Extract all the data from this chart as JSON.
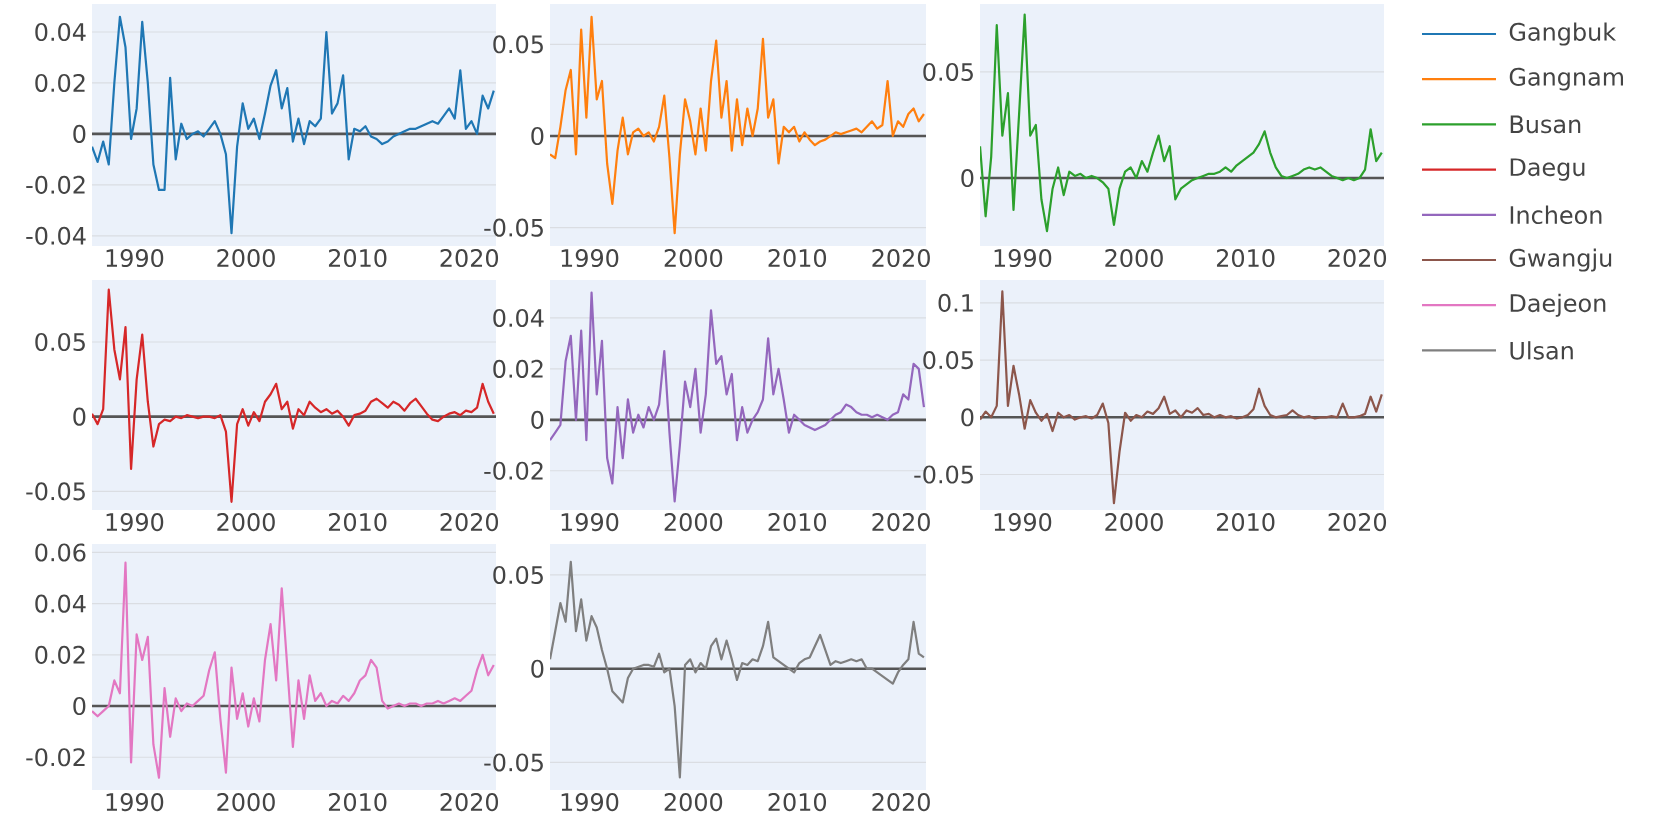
{
  "chart_data": [
    {
      "type": "line",
      "legend": "right",
      "grid": "y",
      "xlim": [
        1986.2,
        2022.4
      ],
      "ylim": [
        -0.044,
        0.051
      ],
      "xticks": [
        1990,
        2000,
        2010,
        2020
      ],
      "yticks": [
        -0.04,
        -0.02,
        0,
        0.02,
        0.04
      ],
      "ref_lines": [
        {
          "axis": "y",
          "value": 0,
          "color": "#555555"
        }
      ],
      "x": [
        1986.2,
        1986.7,
        1987.2,
        1987.7,
        1988.2,
        1988.7,
        1989.2,
        1989.7,
        1990.2,
        1990.7,
        1991.2,
        1991.7,
        1992.2,
        1992.7,
        1993.2,
        1993.7,
        1994.2,
        1994.7,
        1995.2,
        1995.7,
        1996.2,
        1996.7,
        1997.2,
        1997.7,
        1998.2,
        1998.7,
        1999.2,
        1999.7,
        2000.2,
        2000.7,
        2001.2,
        2001.7,
        2002.2,
        2002.7,
        2003.2,
        2003.7,
        2004.2,
        2004.7,
        2005.2,
        2005.7,
        2006.2,
        2006.7,
        2007.2,
        2007.7,
        2008.2,
        2008.7,
        2009.2,
        2009.7,
        2010.2,
        2010.7,
        2011.2,
        2011.7,
        2012.2,
        2012.7,
        2013.2,
        2013.7,
        2014.2,
        2014.7,
        2015.2,
        2015.7,
        2016.2,
        2016.7,
        2017.2,
        2017.7,
        2018.2,
        2018.7,
        2019.2,
        2019.7,
        2020.2,
        2020.7,
        2021.2,
        2021.7,
        2022.2
      ],
      "series": [
        {
          "name": "Gangbuk",
          "color": "#1f77b4",
          "values": [
            -0.005,
            -0.011,
            -0.003,
            -0.012,
            0.02,
            0.046,
            0.034,
            -0.002,
            0.01,
            0.044,
            0.02,
            -0.012,
            -0.022,
            -0.022,
            0.022,
            -0.01,
            0.004,
            -0.002,
            0.0,
            0.001,
            -0.001,
            0.002,
            0.005,
            0.0,
            -0.008,
            -0.039,
            -0.005,
            0.012,
            0.002,
            0.006,
            -0.002,
            0.008,
            0.019,
            0.025,
            0.01,
            0.018,
            -0.003,
            0.006,
            -0.004,
            0.005,
            0.003,
            0.006,
            0.04,
            0.008,
            0.012,
            0.023,
            -0.01,
            0.002,
            0.001,
            0.003,
            -0.001,
            -0.002,
            -0.004,
            -0.003,
            -0.001,
            0.0,
            0.001,
            0.002,
            0.002,
            0.003,
            0.004,
            0.005,
            0.004,
            0.007,
            0.01,
            0.006,
            0.025,
            0.002,
            0.005,
            0.0,
            0.015,
            0.01,
            0.017
          ]
        }
      ]
    },
    {
      "type": "line",
      "legend": "right",
      "grid": "y",
      "xlim": [
        1986.2,
        2022.4
      ],
      "ylim": [
        -0.06,
        0.072
      ],
      "xticks": [
        1990,
        2000,
        2010,
        2020
      ],
      "yticks": [
        -0.05,
        0,
        0.05
      ],
      "ref_lines": [
        {
          "axis": "y",
          "value": 0,
          "color": "#555555"
        }
      ],
      "x": [
        1986.2,
        1986.7,
        1987.2,
        1987.7,
        1988.2,
        1988.7,
        1989.2,
        1989.7,
        1990.2,
        1990.7,
        1991.2,
        1991.7,
        1992.2,
        1992.7,
        1993.2,
        1993.7,
        1994.2,
        1994.7,
        1995.2,
        1995.7,
        1996.2,
        1996.7,
        1997.2,
        1997.7,
        1998.2,
        1998.7,
        1999.2,
        1999.7,
        2000.2,
        2000.7,
        2001.2,
        2001.7,
        2002.2,
        2002.7,
        2003.2,
        2003.7,
        2004.2,
        2004.7,
        2005.2,
        2005.7,
        2006.2,
        2006.7,
        2007.2,
        2007.7,
        2008.2,
        2008.7,
        2009.2,
        2009.7,
        2010.2,
        2010.7,
        2011.2,
        2011.7,
        2012.2,
        2012.7,
        2013.2,
        2013.7,
        2014.2,
        2014.7,
        2015.2,
        2015.7,
        2016.2,
        2016.7,
        2017.2,
        2017.7,
        2018.2,
        2018.7,
        2019.2,
        2019.7,
        2020.2,
        2020.7,
        2021.2,
        2021.7,
        2022.2
      ],
      "series": [
        {
          "name": "Gangnam",
          "color": "#ff7f0e",
          "values": [
            -0.01,
            -0.012,
            0.005,
            0.025,
            0.036,
            -0.01,
            0.058,
            0.01,
            0.065,
            0.02,
            0.03,
            -0.015,
            -0.037,
            -0.008,
            0.01,
            -0.01,
            0.002,
            0.004,
            0.0,
            0.002,
            -0.003,
            0.005,
            0.022,
            -0.012,
            -0.053,
            -0.01,
            0.02,
            0.008,
            -0.01,
            0.015,
            -0.008,
            0.03,
            0.052,
            0.01,
            0.03,
            -0.008,
            0.02,
            -0.005,
            0.015,
            0.0,
            0.015,
            0.053,
            0.01,
            0.02,
            -0.015,
            0.005,
            0.002,
            0.005,
            -0.003,
            0.002,
            -0.002,
            -0.005,
            -0.003,
            -0.002,
            0.0,
            0.002,
            0.001,
            0.002,
            0.003,
            0.004,
            0.002,
            0.005,
            0.008,
            0.004,
            0.006,
            0.03,
            0.0,
            0.008,
            0.005,
            0.012,
            0.015,
            0.008,
            0.012
          ]
        }
      ]
    },
    {
      "type": "line",
      "legend": "right",
      "grid": "y",
      "xlim": [
        1986.2,
        2022.4
      ],
      "ylim": [
        -0.032,
        0.082
      ],
      "xticks": [
        1990,
        2000,
        2010,
        2020
      ],
      "yticks": [
        0,
        0.05
      ],
      "ref_lines": [
        {
          "axis": "y",
          "value": 0,
          "color": "#555555"
        }
      ],
      "x": [
        1986.2,
        1986.7,
        1987.2,
        1987.7,
        1988.2,
        1988.7,
        1989.2,
        1989.7,
        1990.2,
        1990.7,
        1991.2,
        1991.7,
        1992.2,
        1992.7,
        1993.2,
        1993.7,
        1994.2,
        1994.7,
        1995.2,
        1995.7,
        1996.2,
        1996.7,
        1997.2,
        1997.7,
        1998.2,
        1998.7,
        1999.2,
        1999.7,
        2000.2,
        2000.7,
        2001.2,
        2001.7,
        2002.2,
        2002.7,
        2003.2,
        2003.7,
        2004.2,
        2004.7,
        2005.2,
        2005.7,
        2006.2,
        2006.7,
        2007.2,
        2007.7,
        2008.2,
        2008.7,
        2009.2,
        2009.7,
        2010.2,
        2010.7,
        2011.2,
        2011.7,
        2012.2,
        2012.7,
        2013.2,
        2013.7,
        2014.2,
        2014.7,
        2015.2,
        2015.7,
        2016.2,
        2016.7,
        2017.2,
        2017.7,
        2018.2,
        2018.7,
        2019.2,
        2019.7,
        2020.2,
        2020.7,
        2021.2,
        2021.7,
        2022.2
      ],
      "series": [
        {
          "name": "Busan",
          "color": "#2ca02c",
          "values": [
            0.015,
            -0.018,
            0.01,
            0.072,
            0.02,
            0.04,
            -0.015,
            0.03,
            0.077,
            0.02,
            0.025,
            -0.01,
            -0.025,
            -0.005,
            0.005,
            -0.008,
            0.003,
            0.001,
            0.002,
            0.0,
            0.001,
            0.0,
            -0.002,
            -0.005,
            -0.022,
            -0.005,
            0.003,
            0.005,
            0.0,
            0.008,
            0.003,
            0.012,
            0.02,
            0.008,
            0.015,
            -0.01,
            -0.005,
            -0.003,
            -0.001,
            0.0,
            0.001,
            0.002,
            0.002,
            0.003,
            0.005,
            0.003,
            0.006,
            0.008,
            0.01,
            0.012,
            0.016,
            0.022,
            0.012,
            0.005,
            0.001,
            0.0,
            0.001,
            0.002,
            0.004,
            0.005,
            0.004,
            0.005,
            0.003,
            0.001,
            0.0,
            -0.001,
            0.0,
            -0.001,
            0.0,
            0.004,
            0.023,
            0.008,
            0.012
          ]
        }
      ]
    },
    {
      "type": "line",
      "legend": "right",
      "grid": "y",
      "xlim": [
        1986.2,
        2022.4
      ],
      "ylim": [
        -0.0625,
        0.0915
      ],
      "xticks": [
        1990,
        2000,
        2010,
        2020
      ],
      "yticks": [
        -0.05,
        0,
        0.05
      ],
      "ref_lines": [
        {
          "axis": "y",
          "value": 0,
          "color": "#555555"
        }
      ],
      "x": [
        1986.2,
        1986.7,
        1987.2,
        1987.7,
        1988.2,
        1988.7,
        1989.2,
        1989.7,
        1990.2,
        1990.7,
        1991.2,
        1991.7,
        1992.2,
        1992.7,
        1993.2,
        1993.7,
        1994.2,
        1994.7,
        1995.2,
        1995.7,
        1996.2,
        1996.7,
        1997.2,
        1997.7,
        1998.2,
        1998.7,
        1999.2,
        1999.7,
        2000.2,
        2000.7,
        2001.2,
        2001.7,
        2002.2,
        2002.7,
        2003.2,
        2003.7,
        2004.2,
        2004.7,
        2005.2,
        2005.7,
        2006.2,
        2006.7,
        2007.2,
        2007.7,
        2008.2,
        2008.7,
        2009.2,
        2009.7,
        2010.2,
        2010.7,
        2011.2,
        2011.7,
        2012.2,
        2012.7,
        2013.2,
        2013.7,
        2014.2,
        2014.7,
        2015.2,
        2015.7,
        2016.2,
        2016.7,
        2017.2,
        2017.7,
        2018.2,
        2018.7,
        2019.2,
        2019.7,
        2020.2,
        2020.7,
        2021.2,
        2021.7,
        2022.2
      ],
      "series": [
        {
          "name": "Daegu",
          "color": "#d62728",
          "values": [
            0.002,
            -0.005,
            0.005,
            0.085,
            0.045,
            0.025,
            0.06,
            -0.035,
            0.025,
            0.055,
            0.01,
            -0.02,
            -0.005,
            -0.002,
            -0.003,
            0.0,
            -0.001,
            0.001,
            0.0,
            -0.001,
            0.0,
            0.0,
            -0.001,
            0.001,
            -0.01,
            -0.057,
            -0.005,
            0.005,
            -0.006,
            0.003,
            -0.003,
            0.01,
            0.015,
            0.022,
            0.005,
            0.01,
            -0.008,
            0.005,
            0.001,
            0.01,
            0.006,
            0.003,
            0.005,
            0.002,
            0.004,
            0.0,
            -0.006,
            0.001,
            0.002,
            0.004,
            0.01,
            0.012,
            0.009,
            0.006,
            0.01,
            0.008,
            0.004,
            0.009,
            0.012,
            0.007,
            0.002,
            -0.002,
            -0.003,
            0.0,
            0.002,
            0.003,
            0.001,
            0.004,
            0.003,
            0.006,
            0.022,
            0.01,
            0.002
          ]
        }
      ]
    },
    {
      "type": "line",
      "legend": "right",
      "grid": "y",
      "xlim": [
        1986.2,
        2022.4
      ],
      "ylim": [
        -0.0354,
        0.0549
      ],
      "xticks": [
        1990,
        2000,
        2010,
        2020
      ],
      "yticks": [
        -0.02,
        0,
        0.02,
        0.04
      ],
      "ref_lines": [
        {
          "axis": "y",
          "value": 0,
          "color": "#555555"
        }
      ],
      "x": [
        1986.2,
        1986.7,
        1987.2,
        1987.7,
        1988.2,
        1988.7,
        1989.2,
        1989.7,
        1990.2,
        1990.7,
        1991.2,
        1991.7,
        1992.2,
        1992.7,
        1993.2,
        1993.7,
        1994.2,
        1994.7,
        1995.2,
        1995.7,
        1996.2,
        1996.7,
        1997.2,
        1997.7,
        1998.2,
        1998.7,
        1999.2,
        1999.7,
        2000.2,
        2000.7,
        2001.2,
        2001.7,
        2002.2,
        2002.7,
        2003.2,
        2003.7,
        2004.2,
        2004.7,
        2005.2,
        2005.7,
        2006.2,
        2006.7,
        2007.2,
        2007.7,
        2008.2,
        2008.7,
        2009.2,
        2009.7,
        2010.2,
        2010.7,
        2011.2,
        2011.7,
        2012.2,
        2012.7,
        2013.2,
        2013.7,
        2014.2,
        2014.7,
        2015.2,
        2015.7,
        2016.2,
        2016.7,
        2017.2,
        2017.7,
        2018.2,
        2018.7,
        2019.2,
        2019.7,
        2020.2,
        2020.7,
        2021.2,
        2021.7,
        2022.2
      ],
      "series": [
        {
          "name": "Incheon",
          "color": "#9467bd",
          "values": [
            -0.008,
            -0.005,
            -0.002,
            0.023,
            0.033,
            0.0,
            0.035,
            -0.008,
            0.05,
            0.01,
            0.031,
            -0.015,
            -0.025,
            0.005,
            -0.015,
            0.008,
            -0.005,
            0.002,
            -0.003,
            0.005,
            0.0,
            0.006,
            0.027,
            -0.005,
            -0.032,
            -0.01,
            0.015,
            0.005,
            0.02,
            -0.005,
            0.01,
            0.043,
            0.022,
            0.025,
            0.01,
            0.018,
            -0.008,
            0.005,
            -0.005,
            0.0,
            0.003,
            0.008,
            0.032,
            0.01,
            0.02,
            0.008,
            -0.005,
            0.002,
            0.0,
            -0.002,
            -0.003,
            -0.004,
            -0.003,
            -0.002,
            0.0,
            0.002,
            0.003,
            0.006,
            0.005,
            0.003,
            0.002,
            0.002,
            0.001,
            0.002,
            0.001,
            0.0,
            0.002,
            0.003,
            0.01,
            0.008,
            0.022,
            0.02,
            0.005
          ]
        }
      ]
    },
    {
      "type": "line",
      "legend": "right",
      "grid": "y",
      "xlim": [
        1986.2,
        2022.4
      ],
      "ylim": [
        -0.081,
        0.12
      ],
      "xticks": [
        1990,
        2000,
        2010,
        2020
      ],
      "yticks": [
        -0.05,
        0,
        0.05,
        0.1
      ],
      "ref_lines": [
        {
          "axis": "y",
          "value": 0,
          "color": "#555555"
        }
      ],
      "x": [
        1986.2,
        1986.7,
        1987.2,
        1987.7,
        1988.2,
        1988.7,
        1989.2,
        1989.7,
        1990.2,
        1990.7,
        1991.2,
        1991.7,
        1992.2,
        1992.7,
        1993.2,
        1993.7,
        1994.2,
        1994.7,
        1995.2,
        1995.7,
        1996.2,
        1996.7,
        1997.2,
        1997.7,
        1998.2,
        1998.7,
        1999.2,
        1999.7,
        2000.2,
        2000.7,
        2001.2,
        2001.7,
        2002.2,
        2002.7,
        2003.2,
        2003.7,
        2004.2,
        2004.7,
        2005.2,
        2005.7,
        2006.2,
        2006.7,
        2007.2,
        2007.7,
        2008.2,
        2008.7,
        2009.2,
        2009.7,
        2010.2,
        2010.7,
        2011.2,
        2011.7,
        2012.2,
        2012.7,
        2013.2,
        2013.7,
        2014.2,
        2014.7,
        2015.2,
        2015.7,
        2016.2,
        2016.7,
        2017.2,
        2017.7,
        2018.2,
        2018.7,
        2019.2,
        2019.7,
        2020.2,
        2020.7,
        2021.2,
        2021.7,
        2022.2
      ],
      "series": [
        {
          "name": "Gwangju",
          "color": "#8c564b",
          "values": [
            -0.002,
            0.005,
            0.0,
            0.01,
            0.11,
            0.01,
            0.045,
            0.02,
            -0.01,
            0.015,
            0.004,
            -0.003,
            0.003,
            -0.012,
            0.004,
            0.0,
            0.002,
            -0.002,
            0.0,
            0.001,
            -0.001,
            0.002,
            0.012,
            -0.005,
            -0.075,
            -0.03,
            0.004,
            -0.003,
            0.002,
            0.0,
            0.005,
            0.003,
            0.008,
            0.018,
            0.003,
            0.006,
            0.0,
            0.006,
            0.004,
            0.008,
            0.002,
            0.003,
            0.0,
            0.002,
            0.0,
            0.001,
            -0.001,
            0.0,
            0.002,
            0.007,
            0.025,
            0.01,
            0.002,
            0.0,
            0.001,
            0.002,
            0.006,
            0.002,
            0.0,
            0.001,
            -0.001,
            0.0,
            0.0,
            0.001,
            0.0,
            0.012,
            0.0,
            0.0,
            0.001,
            0.003,
            0.018,
            0.005,
            0.02
          ]
        }
      ]
    },
    {
      "type": "line",
      "legend": "right",
      "grid": "y",
      "xlim": [
        1986.2,
        2022.4
      ],
      "ylim": [
        -0.0328,
        0.0633
      ],
      "xticks": [
        1990,
        2000,
        2010,
        2020
      ],
      "yticks": [
        -0.02,
        0,
        0.02,
        0.04,
        0.06
      ],
      "ref_lines": [
        {
          "axis": "y",
          "value": 0,
          "color": "#555555"
        }
      ],
      "x": [
        1986.2,
        1986.7,
        1987.2,
        1987.7,
        1988.2,
        1988.7,
        1989.2,
        1989.7,
        1990.2,
        1990.7,
        1991.2,
        1991.7,
        1992.2,
        1992.7,
        1993.2,
        1993.7,
        1994.2,
        1994.7,
        1995.2,
        1995.7,
        1996.2,
        1996.7,
        1997.2,
        1997.7,
        1998.2,
        1998.7,
        1999.2,
        1999.7,
        2000.2,
        2000.7,
        2001.2,
        2001.7,
        2002.2,
        2002.7,
        2003.2,
        2003.7,
        2004.2,
        2004.7,
        2005.2,
        2005.7,
        2006.2,
        2006.7,
        2007.2,
        2007.7,
        2008.2,
        2008.7,
        2009.2,
        2009.7,
        2010.2,
        2010.7,
        2011.2,
        2011.7,
        2012.2,
        2012.7,
        2013.2,
        2013.7,
        2014.2,
        2014.7,
        2015.2,
        2015.7,
        2016.2,
        2016.7,
        2017.2,
        2017.7,
        2018.2,
        2018.7,
        2019.2,
        2019.7,
        2020.2,
        2020.7,
        2021.2,
        2021.7,
        2022.2
      ],
      "series": [
        {
          "name": "Daejeon",
          "color": "#e377c2",
          "values": [
            -0.002,
            -0.004,
            -0.002,
            0.0,
            0.01,
            0.005,
            0.056,
            -0.022,
            0.028,
            0.018,
            0.027,
            -0.015,
            -0.028,
            0.007,
            -0.012,
            0.003,
            -0.002,
            0.001,
            0.0,
            0.002,
            0.004,
            0.014,
            0.021,
            -0.005,
            -0.026,
            0.015,
            -0.005,
            0.005,
            -0.008,
            0.003,
            -0.006,
            0.018,
            0.032,
            0.01,
            0.046,
            0.015,
            -0.016,
            0.01,
            -0.005,
            0.012,
            0.002,
            0.005,
            0.0,
            0.002,
            0.001,
            0.004,
            0.002,
            0.005,
            0.01,
            0.012,
            0.018,
            0.015,
            0.002,
            -0.001,
            0.0,
            0.001,
            0.0,
            0.001,
            0.001,
            0.0,
            0.001,
            0.001,
            0.002,
            0.001,
            0.002,
            0.003,
            0.002,
            0.004,
            0.006,
            0.014,
            0.02,
            0.012,
            0.016
          ]
        }
      ]
    },
    {
      "type": "line",
      "legend": "right",
      "grid": "y",
      "xlim": [
        1986.2,
        2022.4
      ],
      "ylim": [
        -0.0647,
        0.0665
      ],
      "xticks": [
        1990,
        2000,
        2010,
        2020
      ],
      "yticks": [
        -0.05,
        0,
        0.05
      ],
      "ref_lines": [
        {
          "axis": "y",
          "value": 0,
          "color": "#555555"
        }
      ],
      "x": [
        1986.2,
        1986.7,
        1987.2,
        1987.7,
        1988.2,
        1988.7,
        1989.2,
        1989.7,
        1990.2,
        1990.7,
        1991.2,
        1991.7,
        1992.2,
        1992.7,
        1993.2,
        1993.7,
        1994.2,
        1994.7,
        1995.2,
        1995.7,
        1996.2,
        1996.7,
        1997.2,
        1997.7,
        1998.2,
        1998.7,
        1999.2,
        1999.7,
        2000.2,
        2000.7,
        2001.2,
        2001.7,
        2002.2,
        2002.7,
        2003.2,
        2003.7,
        2004.2,
        2004.7,
        2005.2,
        2005.7,
        2006.2,
        2006.7,
        2007.2,
        2007.7,
        2008.2,
        2008.7,
        2009.2,
        2009.7,
        2010.2,
        2010.7,
        2011.2,
        2011.7,
        2012.2,
        2012.7,
        2013.2,
        2013.7,
        2014.2,
        2014.7,
        2015.2,
        2015.7,
        2016.2,
        2016.7,
        2017.2,
        2017.7,
        2018.2,
        2018.7,
        2019.2,
        2019.7,
        2020.2,
        2020.7,
        2021.2,
        2021.7,
        2022.2
      ],
      "series": [
        {
          "name": "Ulsan",
          "color": "#7f7f7f",
          "values": [
            0.005,
            0.02,
            0.035,
            0.025,
            0.057,
            0.02,
            0.037,
            0.015,
            0.028,
            0.022,
            0.01,
            0.0,
            -0.012,
            -0.015,
            -0.018,
            -0.005,
            0.0,
            0.001,
            0.002,
            0.002,
            0.001,
            0.008,
            -0.002,
            0.0,
            -0.02,
            -0.058,
            0.002,
            0.005,
            -0.002,
            0.003,
            0.0,
            0.012,
            0.016,
            0.005,
            0.015,
            0.005,
            -0.006,
            0.003,
            0.002,
            0.005,
            0.004,
            0.012,
            0.025,
            0.006,
            0.004,
            0.002,
            0.0,
            -0.002,
            0.003,
            0.005,
            0.006,
            0.012,
            0.018,
            0.01,
            0.002,
            0.004,
            0.003,
            0.004,
            0.005,
            0.004,
            0.005,
            0.0,
            0.0,
            -0.002,
            -0.004,
            -0.006,
            -0.008,
            -0.002,
            0.002,
            0.005,
            0.025,
            0.008,
            0.006
          ]
        }
      ]
    }
  ]
}
